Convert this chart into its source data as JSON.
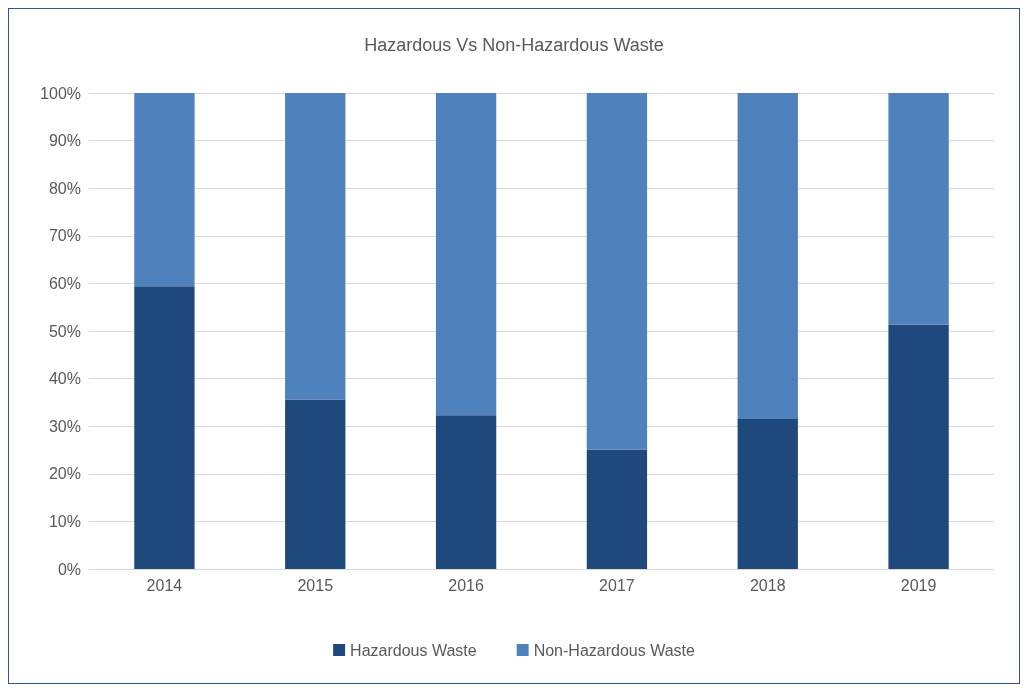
{
  "chart_data": {
    "type": "bar",
    "title": "Hazardous Vs Non-Hazardous Waste",
    "stacked": true,
    "categories": [
      "2014",
      "2015",
      "2016",
      "2017",
      "2018",
      "2019"
    ],
    "series": [
      {
        "name": "Hazardous Waste",
        "color": "#1f497d",
        "values": [
          59.4,
          35.6,
          32.3,
          25.1,
          31.5,
          51.3
        ]
      },
      {
        "name": "Non-Hazardous Waste",
        "color": "#4f81bd",
        "values": [
          40.6,
          64.4,
          67.7,
          74.9,
          68.5,
          48.7
        ]
      }
    ],
    "ylim": [
      0,
      100
    ],
    "yticks": [
      {
        "value": 0,
        "label": "0%"
      },
      {
        "value": 10,
        "label": "10%"
      },
      {
        "value": 20,
        "label": "20%"
      },
      {
        "value": 30,
        "label": "30%"
      },
      {
        "value": 40,
        "label": "40%"
      },
      {
        "value": 50,
        "label": "50%"
      },
      {
        "value": 60,
        "label": "60%"
      },
      {
        "value": 70,
        "label": "70%"
      },
      {
        "value": 80,
        "label": "80%"
      },
      {
        "value": 90,
        "label": "90%"
      },
      {
        "value": 100,
        "label": "100%"
      }
    ],
    "grid": true,
    "legend": "bottom"
  }
}
